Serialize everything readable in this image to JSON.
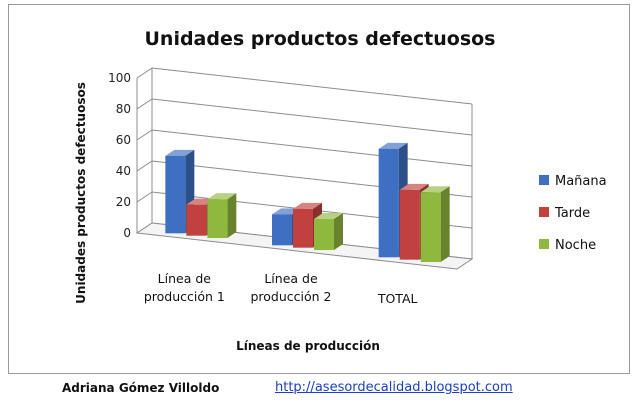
{
  "chart_data": {
    "type": "bar",
    "title": "Unidades productos defectuosos",
    "xlabel": "Líneas de producción",
    "ylabel": "Unidades productos defectuosos",
    "categories": [
      [
        "Línea de",
        "producción 1"
      ],
      [
        "Línea de",
        "producción 2"
      ],
      [
        "TOTAL"
      ]
    ],
    "series": [
      {
        "name": "Mañana",
        "values": [
          50,
          20,
          70
        ],
        "color": "#3f6fc0"
      },
      {
        "name": "Tarde",
        "values": [
          20,
          25,
          45
        ],
        "color": "#c0413d"
      },
      {
        "name": "Noche",
        "values": [
          25,
          20,
          45
        ],
        "color": "#8fb83f"
      }
    ],
    "ylim": [
      0,
      100
    ],
    "yticks": [
      0,
      20,
      40,
      60,
      80,
      100
    ],
    "grid": true,
    "legend": "right",
    "style": "3d-clustered-column"
  },
  "footer": {
    "author": "Adriana Gómez Villoldo",
    "link": "http://asesordecalidad.blogspot.com"
  }
}
